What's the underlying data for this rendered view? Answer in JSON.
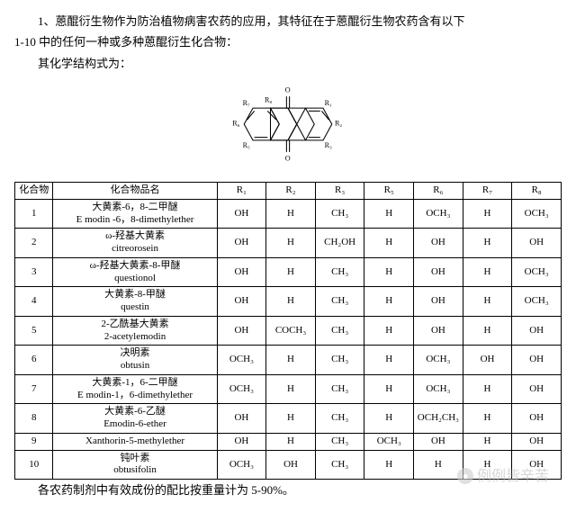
{
  "text": {
    "line1": "1、蒽醌衍生物作为防治植物病害农药的应用，其特征在于蒽醌衍生物农药含有以下",
    "line2": "1-10 中的任何一种或多种蒽醌衍生化合物：",
    "line3": "其化学结构式为：",
    "footer": "各农药制剂中有效成份的配比按重量计为 5-90%。"
  },
  "diagram": {
    "labels": [
      "R₁",
      "R₂",
      "R₃",
      "R₅",
      "R₆",
      "R₇",
      "R₈",
      "O",
      "O"
    ]
  },
  "table": {
    "headers": [
      "化合物",
      "化合物品名",
      "R₁",
      "R₂",
      "R₃",
      "R₅",
      "R₆",
      "R₇",
      "R₈"
    ],
    "rows": [
      {
        "idx": "1",
        "name_cn": "大黄素-6，8-二甲醚",
        "name_en": "E modin -6，8-dimethylether",
        "r": [
          "OH",
          "H",
          "CH₃",
          "H",
          "OCH₃",
          "H",
          "OCH₃"
        ]
      },
      {
        "idx": "2",
        "name_cn": "ω-羟基大黄素",
        "name_en": "citreorosein",
        "r": [
          "OH",
          "H",
          "CH₂OH",
          "H",
          "OH",
          "H",
          "OH"
        ]
      },
      {
        "idx": "3",
        "name_cn": "ω-羟基大黄素-8-甲醚",
        "name_en": "questionol",
        "r": [
          "OH",
          "H",
          "CH₃",
          "H",
          "OH",
          "H",
          "OCH₃"
        ]
      },
      {
        "idx": "4",
        "name_cn": "大黄素-8-甲醚",
        "name_en": "questin",
        "r": [
          "OH",
          "H",
          "CH₃",
          "H",
          "OH",
          "H",
          "OCH₃"
        ]
      },
      {
        "idx": "5",
        "name_cn": "2-乙酰基大黄素",
        "name_en": "2-acetylemodin",
        "r": [
          "OH",
          "COCH₃",
          "CH₃",
          "H",
          "OH",
          "H",
          "OH"
        ]
      },
      {
        "idx": "6",
        "name_cn": "决明素",
        "name_en": "obtusin",
        "r": [
          "OCH₃",
          "H",
          "CH₃",
          "H",
          "OCH₃",
          "OH",
          "OH"
        ]
      },
      {
        "idx": "7",
        "name_cn": "大黄素-1，6-二甲醚",
        "name_en": "E modin-1，6-dimethylether",
        "r": [
          "OCH₃",
          "H",
          "CH₃",
          "H",
          "OCH₃",
          "H",
          "OH"
        ]
      },
      {
        "idx": "8",
        "name_cn": "大黄素-6-乙醚",
        "name_en": "Emodin-6-ether",
        "r": [
          "OH",
          "H",
          "CH₃",
          "H",
          "OCH₂CH₃",
          "H",
          "OH"
        ]
      },
      {
        "idx": "9",
        "name_cn": "",
        "name_en": "Xanthorin-5-methylether",
        "r": [
          "OH",
          "H",
          "CH₃",
          "OCH₃",
          "OH",
          "H",
          "OH"
        ]
      },
      {
        "idx": "10",
        "name_cn": "钝叶素",
        "name_en": "obtusifolin",
        "r": [
          "OCH₃",
          "OH",
          "CH₃",
          "H",
          "H",
          "H",
          "OH"
        ]
      }
    ]
  },
  "watermark": "例例皆辛苦"
}
